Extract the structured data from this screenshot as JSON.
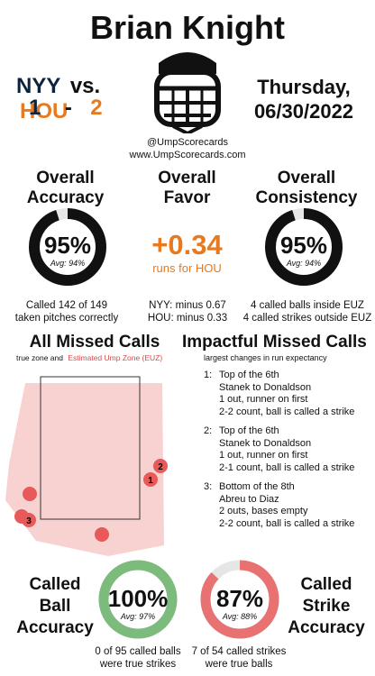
{
  "header": {
    "umpire_name": "Brian Knight",
    "away_team": "NYY",
    "vs_label": "vs.",
    "home_team": "HOU",
    "away_score": "1",
    "score_sep": "-",
    "home_score": "2",
    "day": "Thursday,",
    "date": "06/30/2022",
    "handle": "@UmpScorecards",
    "website": "www.UmpScorecards.com"
  },
  "accuracy": {
    "title_line1": "Overall",
    "title_line2": "Accuracy",
    "value": "95%",
    "avg": "Avg: 94%",
    "fraction": 0.95,
    "note_line1": "Called 142 of 149",
    "note_line2": "taken pitches correctly"
  },
  "favor": {
    "title_line1": "Overall",
    "title_line2": "Favor",
    "value": "+0.34",
    "sub": "runs for HOU",
    "note_line1": "NYY: minus 0.67",
    "note_line2": "HOU: minus 0.33"
  },
  "consistency": {
    "title_line1": "Overall",
    "title_line2": "Consistency",
    "value": "95%",
    "avg": "Avg: 94%",
    "fraction": 0.95,
    "note_line1": "4 called balls inside EUZ",
    "note_line2": "4 called strikes outside EUZ"
  },
  "missed": {
    "title": "All Missed Calls",
    "legend_true": "true zone and",
    "legend_euz": "Estimated Ump Zone (EUZ)",
    "markers": [
      "1",
      "2",
      "3"
    ]
  },
  "impactful": {
    "title": "Impactful Missed Calls",
    "subtitle": "largest changes in run expectancy",
    "items": [
      {
        "num": "1:",
        "line1": "Top of the 6th",
        "line2": "Stanek to Donaldson",
        "line3": "1 out, runner on first",
        "line4": "2-2 count, ball is called a strike"
      },
      {
        "num": "2:",
        "line1": "Top of the 6th",
        "line2": "Stanek to Donaldson",
        "line3": "1 out, runner on first",
        "line4": "2-1 count, ball is called a strike"
      },
      {
        "num": "3:",
        "line1": "Bottom of the 8th",
        "line2": "Abreu to Diaz",
        "line3": "2 outs, bases empty",
        "line4": "2-2 count, ball is called a strike"
      }
    ]
  },
  "ball_acc": {
    "label_line1": "Called",
    "label_line2": "Ball",
    "label_line3": "Accuracy",
    "value": "100%",
    "avg": "Avg: 97%",
    "fraction": 1.0,
    "note_line1": "0 of 95 called balls",
    "note_line2": "were true strikes"
  },
  "strike_acc": {
    "label_line1": "Called",
    "label_line2": "Strike",
    "label_line3": "Accuracy",
    "value": "87%",
    "avg": "Avg: 88%",
    "fraction": 0.87,
    "note_line1": "7 of 54 called strikes",
    "note_line2": "were true balls"
  },
  "colors": {
    "navy": "#0c2340",
    "orange": "#e8791e",
    "green": "#7dbb7d",
    "red": "#e87272",
    "euz_fill": "#f7c9c9",
    "marker": "#e85a5a"
  }
}
